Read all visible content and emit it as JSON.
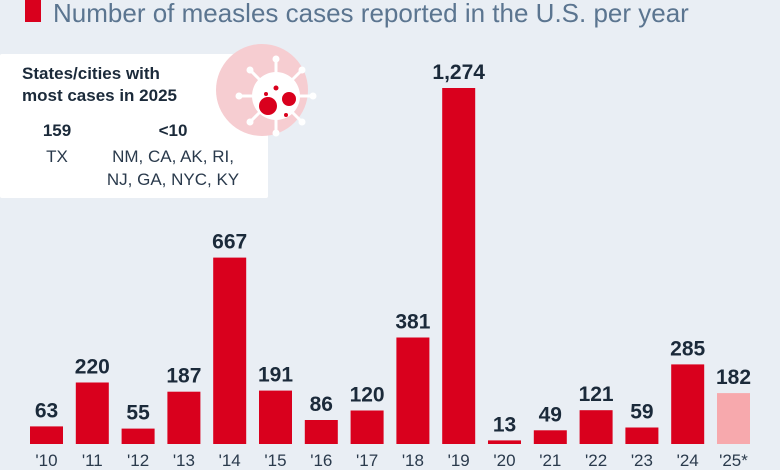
{
  "colors": {
    "bar": "#d9001d",
    "bar_projected": "#f7a9ad",
    "virus_circle": "#f6cdd1",
    "text_dark": "#1b2a3a",
    "legend_text": "#5b7590",
    "background": "#e9eef4",
    "panel": "#ffffff"
  },
  "legend": {
    "label": "Number of measles cases reported in the U.S. per year"
  },
  "info_box": {
    "title_line1": "States/cities with",
    "title_line2": "most cases in 2025",
    "icon": "virus-icon",
    "col1_value": "159",
    "col1_label": "TX",
    "col2_value": "<10",
    "col2_label_line1": "NM, CA, AK, RI,",
    "col2_label_line2": "NJ, GA, NYC, KY"
  },
  "chart_data": {
    "type": "bar",
    "categories": [
      "'10",
      "'11",
      "'12",
      "'13",
      "'14",
      "'15",
      "'16",
      "'17",
      "'18",
      "'19",
      "'20",
      "'21",
      "'22",
      "'23",
      "'24",
      "'25*"
    ],
    "values": [
      63,
      220,
      55,
      187,
      667,
      191,
      86,
      120,
      381,
      1274,
      13,
      49,
      121,
      59,
      285,
      182
    ],
    "value_labels": [
      "63",
      "220",
      "55",
      "187",
      "667",
      "191",
      "86",
      "120",
      "381",
      "1,274",
      "13",
      "49",
      "121",
      "59",
      "285",
      "182"
    ],
    "projected_index": 15,
    "title": "",
    "xlabel": "",
    "ylabel": "",
    "ylim": [
      0,
      1274
    ],
    "grid": false,
    "legend_position": "top-left"
  }
}
